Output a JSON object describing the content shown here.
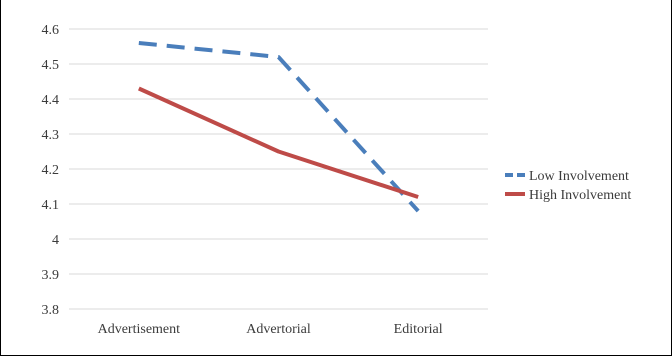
{
  "chart_data": {
    "type": "line",
    "categories": [
      "Advertisement",
      "Advertorial",
      "Editorial"
    ],
    "series": [
      {
        "name": "Low Involvement",
        "values": [
          4.56,
          4.52,
          4.08
        ],
        "color": "#4a7ebb",
        "dash": "dashed"
      },
      {
        "name": "High Involvement",
        "values": [
          4.43,
          4.25,
          4.12
        ],
        "color": "#be4b48",
        "dash": "solid"
      }
    ],
    "yticks": [
      "3.8",
      "3.9",
      "4",
      "4.1",
      "4.2",
      "4.3",
      "4.4",
      "4.5",
      "4.6"
    ],
    "ylim": [
      3.8,
      4.6
    ],
    "grid": true,
    "legend_position": "right",
    "title": "",
    "xlabel": "",
    "ylabel": ""
  }
}
